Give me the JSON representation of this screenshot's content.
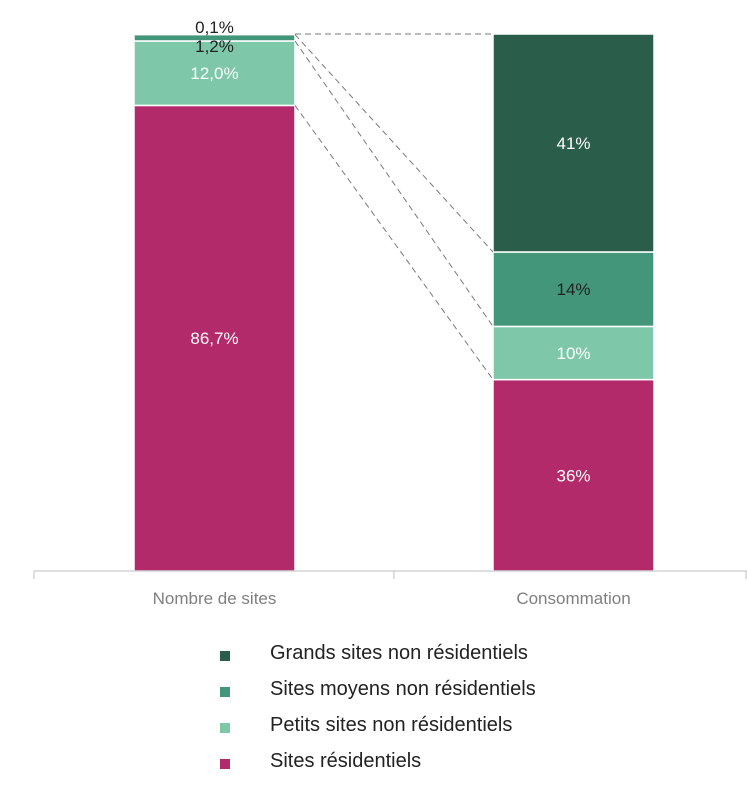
{
  "chart_data": {
    "type": "bar",
    "stacked": true,
    "normalized_percent": true,
    "categories": [
      "Nombre de sites",
      "Consommation"
    ],
    "series": [
      {
        "name": "Sites résidentiels",
        "color": "#b22a6a",
        "values": [
          86.7,
          36
        ],
        "labels": [
          "86,7%",
          "36%"
        ],
        "label_colors": [
          "#ffffff",
          "#ffffff"
        ]
      },
      {
        "name": "Petits sites non résidentiels",
        "color": "#7ec8a9",
        "values": [
          12.0,
          10
        ],
        "labels": [
          "12,0%",
          "10%"
        ],
        "label_colors": [
          "#ffffff",
          "#ffffff"
        ]
      },
      {
        "name": "Sites moyens non résidentiels",
        "color": "#43967a",
        "values": [
          1.2,
          14
        ],
        "labels": [
          "1,2%",
          "14%"
        ],
        "label_colors": [
          "#222222",
          "#222222"
        ]
      },
      {
        "name": "Grands sites non résidentiels",
        "color": "#2a5e4b",
        "values": [
          0.1,
          41
        ],
        "labels": [
          "0,1%",
          "41%"
        ],
        "label_colors": [
          "#222222",
          "#ffffff"
        ]
      }
    ],
    "connector_lines": "dashed",
    "legend_position": "bottom"
  },
  "legend": {
    "order": [
      3,
      2,
      1,
      0
    ]
  }
}
